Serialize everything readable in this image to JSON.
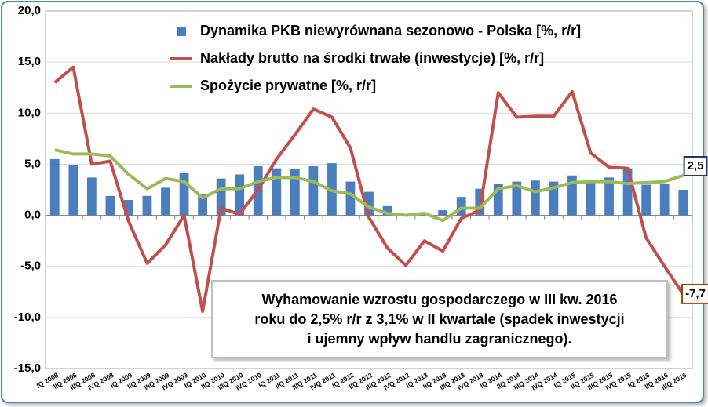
{
  "chart_data": {
    "type": "bar-line",
    "categories": [
      "IQ 2008",
      "IIQ 2008",
      "IIIQ 2008",
      "IVQ 2008",
      "IQ 2009",
      "IIQ 2009",
      "IIIQ 2009",
      "IVQ 2009",
      "IQ 2010",
      "IIQ 2010",
      "IIIQ 2010",
      "IVQ 2010",
      "IQ 2011",
      "IIQ 2011",
      "IIIQ 2011",
      "IVQ 2011",
      "IQ 2012",
      "IIQ 2012",
      "IIIQ 2012",
      "IVQ 2012",
      "IQ 2013",
      "IIQ 2013",
      "IIIQ 2013",
      "IVQ 2013",
      "IQ 2014",
      "IIQ 2014",
      "IIIQ 2014",
      "IVQ 2014",
      "IQ 2015",
      "IIQ 2015",
      "IIIQ 2015",
      "IVQ 2015",
      "IQ 2016",
      "IIQ 2016",
      "IIIQ 2016"
    ],
    "series": [
      {
        "name": "Dynamika PKB niewyrównana sezonowo - Polska [%, r/r]",
        "kind": "bar",
        "color": "#4a7ebf",
        "values": [
          5.5,
          4.9,
          3.7,
          1.9,
          1.5,
          1.9,
          2.7,
          4.2,
          2.1,
          3.6,
          4.0,
          4.8,
          4.6,
          4.5,
          4.8,
          5.1,
          3.3,
          2.3,
          0.9,
          0.1,
          0.1,
          0.5,
          1.8,
          2.6,
          3.1,
          3.3,
          3.4,
          3.3,
          3.9,
          3.5,
          3.7,
          4.6,
          3.0,
          3.1,
          2.5
        ],
        "value_labels": [
          null,
          null,
          null,
          null,
          null,
          null,
          null,
          null,
          null,
          null,
          null,
          null,
          null,
          null,
          null,
          null,
          null,
          null,
          null,
          null,
          null,
          null,
          null,
          null,
          null,
          null,
          null,
          null,
          null,
          null,
          null,
          null,
          null,
          null,
          "2,5"
        ],
        "label_border": "#1f3864"
      },
      {
        "name": "Nakłady brutto na środki trwałe (inwestycje) [%, r/r]",
        "kind": "line",
        "color": "#c0504d",
        "values": [
          13.0,
          14.5,
          5.0,
          5.3,
          -0.6,
          -4.7,
          -2.9,
          0.0,
          -9.4,
          0.7,
          0.1,
          2.5,
          5.5,
          7.9,
          10.4,
          9.6,
          6.6,
          -0.2,
          -3.2,
          -4.9,
          -2.5,
          -3.5,
          -0.3,
          0.5,
          12.0,
          9.6,
          9.7,
          9.7,
          12.1,
          6.1,
          4.7,
          4.6,
          -2.2,
          -5.0,
          -7.7
        ],
        "value_labels": [
          null,
          null,
          null,
          null,
          null,
          null,
          null,
          null,
          null,
          null,
          null,
          null,
          null,
          null,
          null,
          null,
          null,
          null,
          null,
          null,
          null,
          null,
          null,
          null,
          null,
          null,
          null,
          null,
          null,
          null,
          null,
          null,
          null,
          null,
          "-7,7"
        ],
        "label_border": "#984807"
      },
      {
        "name": "Spożycie prywatne [%, r/r]",
        "kind": "line",
        "color": "#9bbb59",
        "values": [
          6.4,
          6.0,
          6.0,
          5.8,
          4.0,
          2.6,
          3.6,
          3.3,
          1.7,
          2.6,
          2.6,
          3.3,
          3.7,
          3.7,
          3.3,
          2.4,
          2.1,
          0.8,
          0.2,
          0.0,
          0.2,
          -0.5,
          0.7,
          0.7,
          2.6,
          2.9,
          2.3,
          2.7,
          3.2,
          3.3,
          3.3,
          3.1,
          3.2,
          3.3,
          3.9
        ]
      }
    ],
    "ylim": [
      -15,
      20
    ],
    "yticks": [
      {
        "value": -15,
        "label": "-15,0"
      },
      {
        "value": -10,
        "label": "-10,0"
      },
      {
        "value": -5,
        "label": "-5,0"
      },
      {
        "value": 0,
        "label": "0,0"
      },
      {
        "value": 5,
        "label": "5,0"
      },
      {
        "value": 10,
        "label": "10,0"
      },
      {
        "value": 15,
        "label": "15,0"
      },
      {
        "value": 20,
        "label": "20,0"
      }
    ],
    "grid": true,
    "legend": "top-left",
    "annotation": [
      "Wyhamowanie wzrostu gospodarczego w III kw. 2016",
      "roku do 2,5% r/r z 3,1% w II kwartale (spadek inwestycji",
      "i ujemny wpływ handlu zagranicznego)."
    ]
  }
}
